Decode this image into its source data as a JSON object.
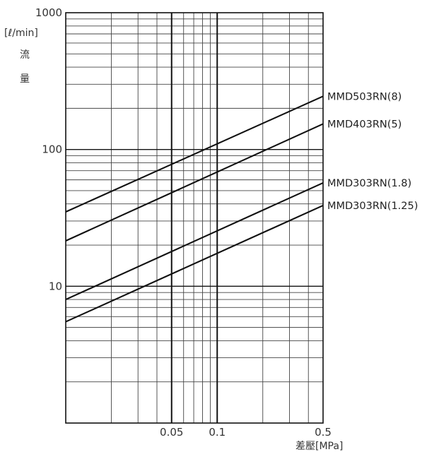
{
  "chart_data": {
    "type": "line",
    "x_scale": "log",
    "y_scale": "log",
    "xlim": [
      0.01,
      0.5
    ],
    "ylim": [
      1,
      1000
    ],
    "ylabel_unit": "[ℓ/min]",
    "ylabel_chars": [
      "流",
      "量"
    ],
    "xlabel": "差壓[MPa]",
    "x_ticks": [
      {
        "value": 0.05,
        "label": "0.05"
      },
      {
        "value": 0.1,
        "label": "0.1"
      },
      {
        "value": 0.5,
        "label": "0.5"
      }
    ],
    "y_ticks": [
      {
        "value": 10,
        "label": "10"
      },
      {
        "value": 100,
        "label": "100"
      },
      {
        "value": 1000,
        "label": "1000"
      }
    ],
    "grid": true,
    "series": [
      {
        "name": "MMD503RN(8)",
        "x": [
          0.01,
          0.5
        ],
        "y": [
          35,
          245
        ]
      },
      {
        "name": "MMD403RN(5)",
        "x": [
          0.01,
          0.5
        ],
        "y": [
          21.5,
          154
        ]
      },
      {
        "name": "MMD303RN(1.8)",
        "x": [
          0.01,
          0.5
        ],
        "y": [
          8,
          57
        ]
      },
      {
        "name": "MMD303RN(1.25)",
        "x": [
          0.01,
          0.5
        ],
        "y": [
          5.5,
          39
        ]
      }
    ]
  }
}
